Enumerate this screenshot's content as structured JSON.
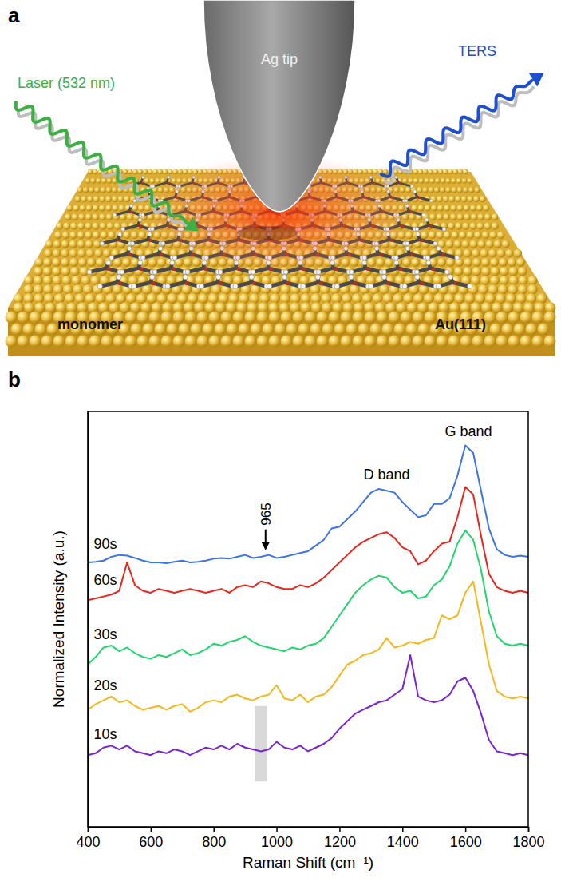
{
  "panel_a": {
    "panel_label": "a",
    "labels": [
      "Laser (532 nm)",
      "Ag tip",
      "TERS",
      "monomer",
      "Au(111)"
    ]
  },
  "chart_data": {
    "type": "line",
    "panel_label": "b",
    "x_label": "Raman Shift (cm⁻¹)",
    "y_label": "Normalized Intensity (a.u.)",
    "xlim": [
      400,
      1800
    ],
    "xticks": [
      400,
      600,
      800,
      1000,
      1200,
      1400,
      1600,
      1800
    ],
    "ylim": [
      0,
      11
    ],
    "yticks": [],
    "tick_labels": "x",
    "grid": false,
    "x": [
      400,
      425,
      450,
      475,
      500,
      525,
      550,
      575,
      600,
      625,
      650,
      675,
      700,
      725,
      750,
      775,
      800,
      825,
      850,
      875,
      900,
      925,
      950,
      975,
      1000,
      1025,
      1050,
      1075,
      1100,
      1125,
      1150,
      1175,
      1200,
      1225,
      1250,
      1275,
      1300,
      1325,
      1350,
      1375,
      1400,
      1425,
      1450,
      1475,
      1500,
      1525,
      1550,
      1575,
      1600,
      1625,
      1650,
      1675,
      1700,
      1725,
      1750,
      1775,
      1800
    ],
    "series": [
      {
        "name": "90s",
        "color": "#3b74e6",
        "values": [
          7.0,
          7.02,
          7.05,
          7.15,
          7.2,
          7.18,
          7.12,
          7.05,
          7.0,
          7.0,
          6.98,
          7.02,
          7.05,
          7.0,
          7.02,
          7.05,
          7.1,
          7.12,
          7.1,
          7.15,
          7.2,
          7.12,
          7.15,
          7.2,
          7.12,
          7.15,
          7.2,
          7.25,
          7.3,
          7.45,
          7.6,
          7.9,
          7.95,
          8.15,
          8.35,
          8.6,
          8.85,
          8.95,
          8.9,
          8.85,
          8.6,
          8.4,
          8.2,
          8.25,
          8.55,
          8.55,
          8.7,
          9.3,
          10.1,
          9.9,
          8.9,
          7.9,
          7.35,
          7.2,
          7.15,
          7.18,
          7.15
        ]
      },
      {
        "name": "60s",
        "color": "#e8261c",
        "values": [
          6.0,
          6.05,
          6.1,
          6.15,
          6.25,
          7.0,
          6.4,
          6.25,
          6.2,
          6.3,
          6.25,
          6.2,
          6.25,
          6.3,
          6.25,
          6.2,
          6.25,
          6.3,
          6.2,
          6.35,
          6.4,
          6.35,
          6.5,
          6.45,
          6.35,
          6.3,
          6.3,
          6.4,
          6.35,
          6.45,
          6.6,
          6.8,
          7.0,
          7.2,
          7.4,
          7.55,
          7.65,
          7.75,
          7.8,
          7.65,
          7.4,
          7.3,
          6.95,
          7.05,
          7.3,
          7.5,
          7.55,
          8.2,
          9.0,
          8.8,
          7.7,
          6.7,
          6.35,
          6.25,
          6.2,
          6.25,
          6.2
        ]
      },
      {
        "name": "30s",
        "color": "#22d66b",
        "values": [
          4.3,
          4.5,
          4.75,
          4.8,
          4.65,
          4.75,
          4.6,
          4.5,
          4.45,
          4.55,
          4.5,
          4.6,
          4.7,
          4.55,
          4.6,
          4.7,
          4.85,
          4.8,
          4.9,
          4.95,
          5.05,
          4.9,
          4.8,
          4.75,
          4.7,
          4.65,
          4.75,
          4.7,
          4.8,
          4.85,
          5.0,
          5.3,
          5.6,
          5.9,
          6.2,
          6.4,
          6.55,
          6.65,
          6.6,
          6.35,
          6.2,
          6.25,
          6.05,
          6.1,
          6.4,
          6.55,
          6.9,
          7.5,
          7.85,
          7.6,
          6.8,
          5.7,
          5.05,
          4.85,
          4.8,
          4.85,
          4.8
        ]
      },
      {
        "name": "20s",
        "color": "#f5b81c",
        "values": [
          3.1,
          3.25,
          3.35,
          3.45,
          3.3,
          3.35,
          3.2,
          3.1,
          3.15,
          3.2,
          3.1,
          3.2,
          3.25,
          3.05,
          3.15,
          3.3,
          3.35,
          3.3,
          3.45,
          3.5,
          3.4,
          3.35,
          3.45,
          3.5,
          3.75,
          3.4,
          3.35,
          3.5,
          3.3,
          3.45,
          3.5,
          3.7,
          4.0,
          4.3,
          4.4,
          4.55,
          4.6,
          4.7,
          5.0,
          4.75,
          4.8,
          4.9,
          4.85,
          4.95,
          5.0,
          5.6,
          5.5,
          5.6,
          6.2,
          6.5,
          5.4,
          4.3,
          3.6,
          3.45,
          3.4,
          3.45,
          3.4
        ]
      },
      {
        "name": "10s",
        "color": "#7b22d4",
        "values": [
          1.9,
          1.95,
          2.1,
          2.15,
          2.05,
          2.15,
          2.0,
          1.95,
          1.9,
          2.0,
          1.95,
          2.05,
          2.0,
          1.9,
          2.0,
          2.1,
          2.05,
          2.15,
          2.05,
          2.2,
          2.1,
          2.05,
          2.0,
          2.05,
          2.25,
          2.1,
          2.05,
          2.15,
          2.0,
          2.1,
          2.2,
          2.35,
          2.6,
          2.8,
          3.0,
          3.1,
          3.2,
          3.3,
          3.35,
          3.5,
          3.65,
          4.55,
          3.45,
          3.35,
          3.3,
          3.35,
          3.5,
          3.85,
          3.95,
          3.6,
          3.0,
          2.3,
          2.0,
          1.95,
          1.9,
          1.95,
          1.9
        ]
      }
    ],
    "annotations": [
      {
        "text": "965",
        "x": 965,
        "marker": "arrow"
      },
      {
        "text": "D band",
        "x": 1350
      },
      {
        "text": "G band",
        "x": 1610
      }
    ],
    "shaded_band": {
      "x": [
        930,
        970
      ],
      "y": [
        1.2,
        3.2
      ],
      "color": "#d9d9d9"
    }
  }
}
